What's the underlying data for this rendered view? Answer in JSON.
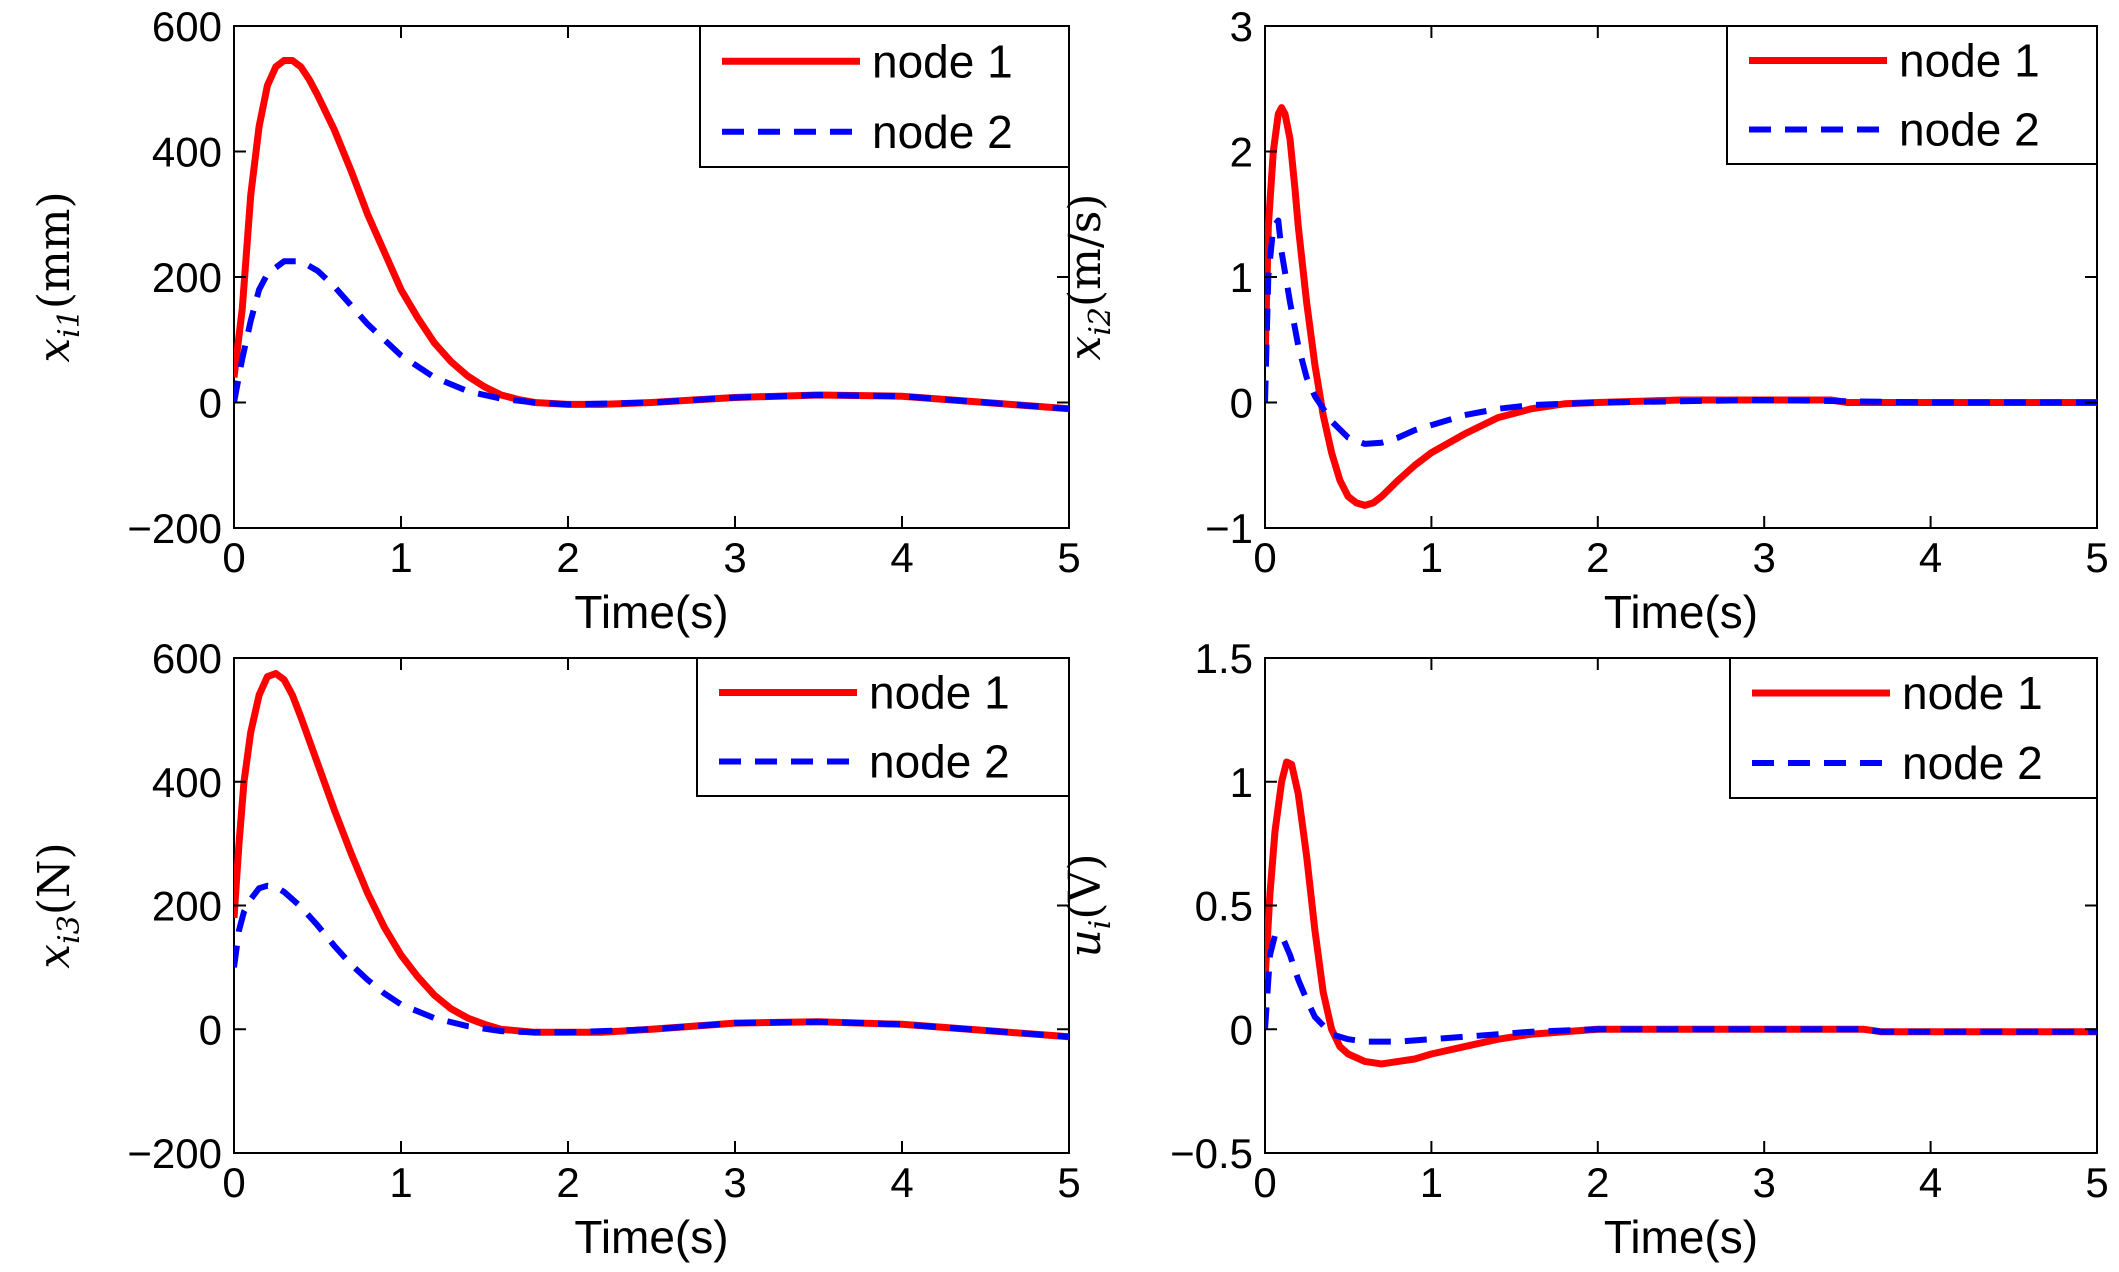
{
  "colors": {
    "node1": "#ff0000",
    "node2": "#0000ff",
    "axis": "#000000"
  },
  "chart_data": [
    {
      "type": "line",
      "ylabel": {
        "var": "x",
        "sub": "i1",
        "unit": "(mm)"
      },
      "xlabel": "Time(s)",
      "xlim": [
        0,
        5
      ],
      "ylim": [
        -200,
        600
      ],
      "xticks": [
        0,
        1,
        2,
        3,
        4,
        5
      ],
      "yticks": [
        -200,
        0,
        200,
        400,
        600
      ],
      "yticklabels": [
        "−200",
        "0",
        "200",
        "400",
        "600"
      ],
      "legend": "top-right",
      "series": [
        {
          "name": "node 1",
          "style": "solid",
          "x": [
            0,
            0.05,
            0.1,
            0.15,
            0.2,
            0.25,
            0.3,
            0.35,
            0.4,
            0.45,
            0.5,
            0.6,
            0.7,
            0.8,
            0.9,
            1.0,
            1.1,
            1.2,
            1.3,
            1.4,
            1.5,
            1.6,
            1.7,
            1.8,
            2.0,
            2.2,
            2.5,
            3.0,
            3.5,
            4.0,
            4.5,
            5.0
          ],
          "y": [
            40,
            150,
            330,
            440,
            505,
            535,
            545,
            545,
            535,
            515,
            490,
            435,
            370,
            300,
            240,
            180,
            135,
            95,
            65,
            42,
            25,
            12,
            5,
            0,
            -3,
            -3,
            0,
            8,
            12,
            10,
            0,
            -10
          ]
        },
        {
          "name": "node 2",
          "style": "dashed",
          "x": [
            0,
            0.05,
            0.1,
            0.15,
            0.2,
            0.3,
            0.4,
            0.5,
            0.6,
            0.7,
            0.8,
            0.9,
            1.0,
            1.2,
            1.4,
            1.6,
            1.8,
            2.0,
            2.5,
            3.0,
            3.5,
            4.0,
            4.5,
            5.0
          ],
          "y": [
            0,
            70,
            130,
            180,
            205,
            225,
            225,
            210,
            185,
            155,
            125,
            100,
            75,
            40,
            18,
            6,
            0,
            -3,
            0,
            8,
            12,
            10,
            0,
            -10
          ]
        }
      ]
    },
    {
      "type": "line",
      "ylabel": {
        "var": "x",
        "sub": "i2",
        "unit": "(m/s)"
      },
      "xlabel": "Time(s)",
      "xlim": [
        0,
        5
      ],
      "ylim": [
        -1,
        3
      ],
      "xticks": [
        0,
        1,
        2,
        3,
        4,
        5
      ],
      "yticks": [
        -1,
        0,
        1,
        2,
        3
      ],
      "yticklabels": [
        "−1",
        "0",
        "1",
        "2",
        "3"
      ],
      "legend": "top-right",
      "series": [
        {
          "name": "node 1",
          "style": "solid",
          "x": [
            0,
            0.02,
            0.05,
            0.08,
            0.1,
            0.12,
            0.15,
            0.18,
            0.2,
            0.25,
            0.3,
            0.35,
            0.4,
            0.45,
            0.5,
            0.55,
            0.6,
            0.65,
            0.7,
            0.8,
            0.9,
            1.0,
            1.2,
            1.4,
            1.6,
            1.8,
            2.0,
            2.5,
            3.0,
            3.4,
            3.5,
            4.0,
            5.0
          ],
          "y": [
            0.3,
            1.4,
            2.0,
            2.3,
            2.35,
            2.3,
            2.1,
            1.7,
            1.4,
            0.8,
            0.3,
            -0.1,
            -0.4,
            -0.62,
            -0.75,
            -0.8,
            -0.82,
            -0.8,
            -0.75,
            -0.62,
            -0.5,
            -0.4,
            -0.25,
            -0.12,
            -0.05,
            -0.01,
            0.0,
            0.02,
            0.02,
            0.02,
            0.0,
            0.0,
            0.0
          ]
        },
        {
          "name": "node 2",
          "style": "dashed",
          "x": [
            0,
            0.02,
            0.05,
            0.08,
            0.1,
            0.15,
            0.2,
            0.25,
            0.3,
            0.4,
            0.5,
            0.6,
            0.7,
            0.8,
            0.9,
            1.0,
            1.2,
            1.4,
            1.6,
            2.0,
            3.0,
            4.0,
            5.0
          ],
          "y": [
            0.0,
            1.0,
            1.4,
            1.45,
            1.2,
            0.8,
            0.45,
            0.2,
            0.05,
            -0.15,
            -0.28,
            -0.33,
            -0.32,
            -0.28,
            -0.22,
            -0.18,
            -0.1,
            -0.05,
            -0.02,
            0.0,
            0.02,
            0.0,
            0.0
          ]
        }
      ]
    },
    {
      "type": "line",
      "ylabel": {
        "var": "x",
        "sub": "i3",
        "unit": "(N)"
      },
      "xlabel": "Time(s)",
      "xlim": [
        0,
        5
      ],
      "ylim": [
        -200,
        600
      ],
      "xticks": [
        0,
        1,
        2,
        3,
        4,
        5
      ],
      "yticks": [
        -200,
        0,
        200,
        400,
        600
      ],
      "yticklabels": [
        "−200",
        "0",
        "200",
        "400",
        "600"
      ],
      "legend": "top-right",
      "series": [
        {
          "name": "node 1",
          "style": "solid",
          "x": [
            0,
            0.03,
            0.06,
            0.1,
            0.15,
            0.2,
            0.25,
            0.3,
            0.35,
            0.4,
            0.5,
            0.6,
            0.7,
            0.8,
            0.9,
            1.0,
            1.1,
            1.2,
            1.3,
            1.4,
            1.5,
            1.6,
            1.8,
            2.0,
            2.2,
            2.5,
            3.0,
            3.5,
            4.0,
            4.5,
            5.0
          ],
          "y": [
            180,
            300,
            400,
            480,
            540,
            570,
            575,
            565,
            540,
            505,
            430,
            355,
            285,
            220,
            165,
            120,
            85,
            55,
            33,
            18,
            8,
            0,
            -5,
            -5,
            -5,
            0,
            10,
            12,
            8,
            -2,
            -12
          ]
        },
        {
          "name": "node 2",
          "style": "dashed",
          "x": [
            0,
            0.03,
            0.06,
            0.1,
            0.15,
            0.2,
            0.25,
            0.3,
            0.4,
            0.5,
            0.6,
            0.7,
            0.8,
            0.9,
            1.0,
            1.2,
            1.4,
            1.6,
            1.8,
            2.0,
            2.5,
            3.0,
            3.5,
            4.0,
            4.5,
            5.0
          ],
          "y": [
            100,
            160,
            190,
            210,
            228,
            232,
            230,
            222,
            198,
            168,
            135,
            105,
            80,
            58,
            40,
            18,
            5,
            -3,
            -5,
            -5,
            0,
            10,
            12,
            8,
            -2,
            -12
          ]
        }
      ]
    },
    {
      "type": "line",
      "ylabel": {
        "var": "u",
        "sub": "i",
        "unit": "(V)"
      },
      "xlabel": "Time(s)",
      "xlim": [
        0,
        5
      ],
      "ylim": [
        -0.5,
        1.5
      ],
      "xticks": [
        0,
        1,
        2,
        3,
        4,
        5
      ],
      "yticks": [
        -0.5,
        0,
        0.5,
        1,
        1.5
      ],
      "yticklabels": [
        "−0.5",
        "0",
        "0.5",
        "1",
        "1.5"
      ],
      "legend": "top-right",
      "series": [
        {
          "name": "node 1",
          "style": "solid",
          "x": [
            0,
            0.03,
            0.06,
            0.1,
            0.13,
            0.16,
            0.2,
            0.25,
            0.3,
            0.35,
            0.4,
            0.45,
            0.5,
            0.6,
            0.7,
            0.8,
            0.9,
            1.0,
            1.2,
            1.4,
            1.6,
            1.8,
            2.0,
            2.5,
            3.0,
            3.6,
            3.7,
            4.0,
            5.0
          ],
          "y": [
            0.2,
            0.55,
            0.8,
            1.0,
            1.08,
            1.07,
            0.95,
            0.7,
            0.4,
            0.15,
            0.0,
            -0.07,
            -0.1,
            -0.13,
            -0.14,
            -0.13,
            -0.12,
            -0.1,
            -0.07,
            -0.04,
            -0.02,
            -0.01,
            0.0,
            0.0,
            0.0,
            0.0,
            -0.01,
            -0.01,
            -0.01
          ]
        },
        {
          "name": "node 2",
          "style": "dashed",
          "x": [
            0,
            0.03,
            0.06,
            0.1,
            0.15,
            0.2,
            0.25,
            0.3,
            0.4,
            0.5,
            0.6,
            0.7,
            0.8,
            1.0,
            1.2,
            1.4,
            1.6,
            2.0,
            2.5,
            3.0,
            3.6,
            3.7,
            4.0,
            5.0
          ],
          "y": [
            0.0,
            0.3,
            0.38,
            0.38,
            0.3,
            0.2,
            0.12,
            0.05,
            -0.02,
            -0.04,
            -0.05,
            -0.05,
            -0.05,
            -0.04,
            -0.03,
            -0.02,
            -0.01,
            0.0,
            0.0,
            0.0,
            0.0,
            -0.01,
            -0.01,
            -0.01
          ]
        }
      ]
    }
  ]
}
